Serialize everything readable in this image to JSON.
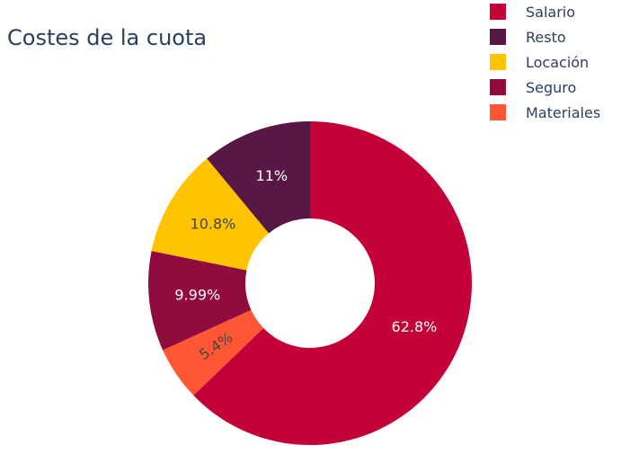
{
  "chart_data": {
    "type": "pie",
    "hole": 0.4,
    "title": "Costes de la cuota",
    "categories": [
      "Salario",
      "Resto",
      "Locación",
      "Seguro",
      "Materiales"
    ],
    "values": [
      62.8,
      11.0,
      10.8,
      9.99,
      5.4
    ],
    "labels": [
      "62.8%",
      "11%",
      "10.8%",
      "9.99%",
      "5.4%"
    ],
    "colors": [
      "#c40039",
      "#581845",
      "#ffc300",
      "#900c3f",
      "#ff5733"
    ],
    "text_colors": [
      "#ffffff",
      "#ffffff",
      "#444444",
      "#ffffff",
      "#444444"
    ],
    "slice_order": [
      "Salario",
      "Materiales",
      "Seguro",
      "Locación",
      "Resto"
    ],
    "direction": "clockwise",
    "start": "top",
    "legend_position": "top-right"
  }
}
